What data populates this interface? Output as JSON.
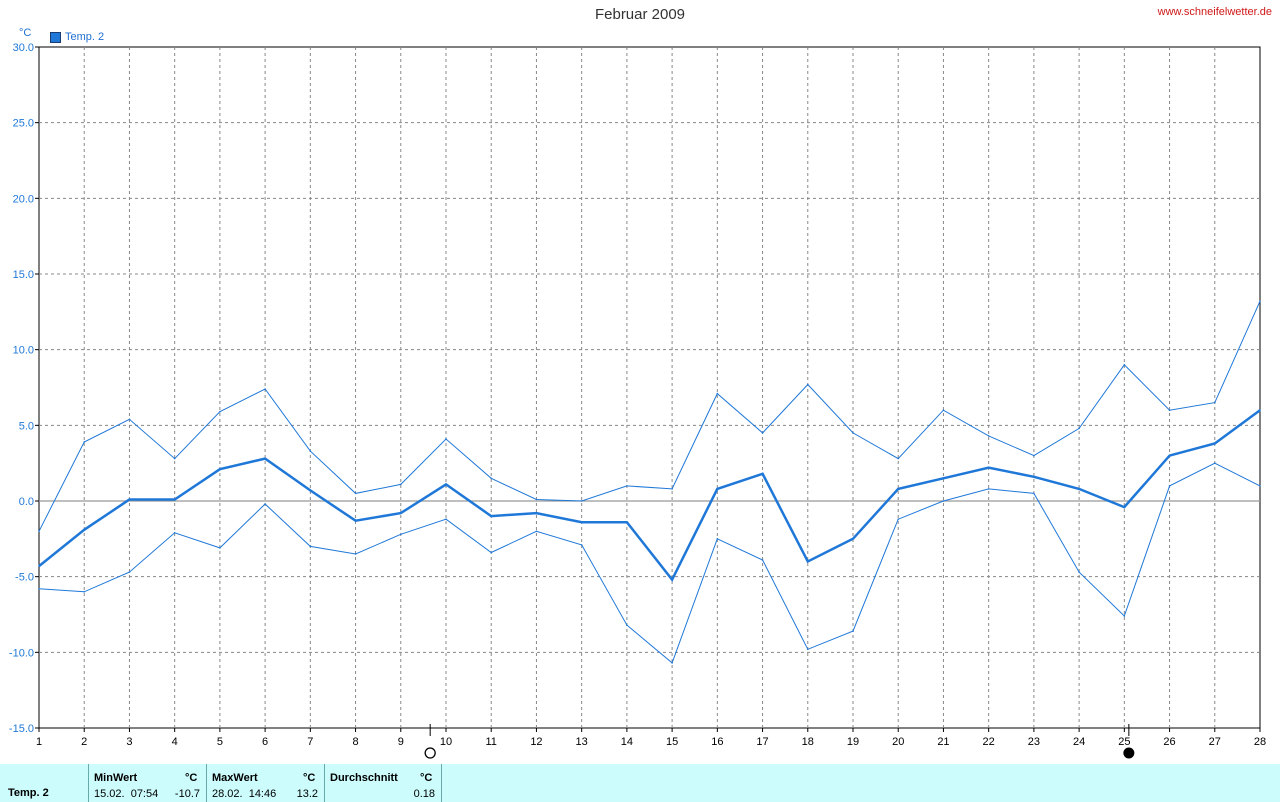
{
  "header": {
    "title": "Februar 2009",
    "site": "www.schneifelwetter.de",
    "unit": "°C",
    "legend_label": "Temp. 2"
  },
  "colors": {
    "series": "#1f78d8",
    "grid": "#888888",
    "axis": "#000000"
  },
  "chart_data": {
    "type": "line",
    "title": "Februar 2009",
    "ylabel": "°C",
    "ylim": [
      -15,
      30
    ],
    "yticks": [
      "-15.0",
      "-10.0",
      "-5.0",
      "0.0",
      "5.0",
      "10.0",
      "15.0",
      "20.0",
      "25.0",
      "30.0"
    ],
    "x": [
      1,
      2,
      3,
      4,
      5,
      6,
      7,
      8,
      9,
      10,
      11,
      12,
      13,
      14,
      15,
      16,
      17,
      18,
      19,
      20,
      21,
      22,
      23,
      24,
      25,
      26,
      27,
      28
    ],
    "xticks": [
      "1",
      "2",
      "3",
      "4",
      "5",
      "6",
      "7",
      "8",
      "9",
      "10",
      "11",
      "12",
      "13",
      "14",
      "15",
      "16",
      "17",
      "18",
      "19",
      "20",
      "21",
      "22",
      "23",
      "24",
      "25",
      "26",
      "27",
      "28"
    ],
    "grid": true,
    "series": [
      {
        "name": "Temp. 2",
        "style": "max",
        "values": [
          -2.0,
          3.9,
          5.4,
          2.8,
          5.9,
          7.4,
          3.3,
          0.5,
          1.1,
          4.1,
          1.5,
          0.1,
          0.0,
          1.0,
          0.8,
          7.1,
          4.5,
          7.7,
          4.5,
          2.8,
          6.0,
          4.3,
          3.0,
          4.8,
          9.0,
          6.0,
          6.5,
          13.2
        ]
      },
      {
        "name": "Temp. 2",
        "style": "avg",
        "values": [
          -4.3,
          -1.9,
          0.1,
          0.1,
          2.1,
          2.8,
          0.7,
          -1.3,
          -0.8,
          1.1,
          -1.0,
          -0.8,
          -1.4,
          -1.4,
          -5.2,
          0.8,
          1.8,
          -4.0,
          -2.5,
          0.8,
          1.5,
          2.2,
          1.6,
          0.8,
          -0.4,
          3.0,
          3.8,
          6.0
        ]
      },
      {
        "name": "Temp. 2",
        "style": "min",
        "values": [
          -5.8,
          -6.0,
          -4.7,
          -2.1,
          -3.1,
          -0.2,
          -3.0,
          -3.5,
          -2.2,
          -1.2,
          -3.4,
          -2.0,
          -2.9,
          -8.2,
          -10.7,
          -2.5,
          -3.9,
          -9.8,
          -8.6,
          -1.2,
          0.0,
          0.8,
          0.5,
          -4.7,
          -7.6,
          1.0,
          2.5,
          1.0
        ]
      }
    ],
    "moon_markers": [
      {
        "phase": "full",
        "x": 9.65
      },
      {
        "phase": "new",
        "x": 25.1
      }
    ]
  },
  "footer": {
    "series_label": "Temp. 2",
    "min_header": "MinWert",
    "min_unit": "°C",
    "min_datetime": "15.02.  07:54",
    "min_value": "-10.7",
    "max_header": "MaxWert",
    "max_unit": "°C",
    "max_datetime": "28.02.  14:46",
    "max_value": "13.2",
    "avg_header": "Durchschnitt",
    "avg_unit": "°C",
    "avg_value": "0.18"
  }
}
